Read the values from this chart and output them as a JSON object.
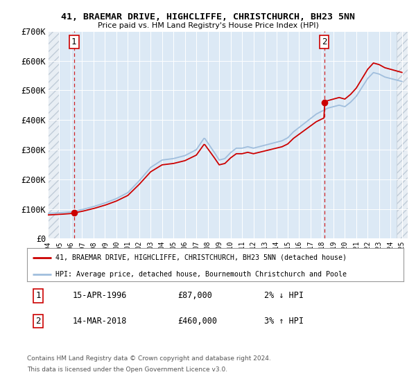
{
  "title": "41, BRAEMAR DRIVE, HIGHCLIFFE, CHRISTCHURCH, BH23 5NN",
  "subtitle": "Price paid vs. HM Land Registry's House Price Index (HPI)",
  "sale1_date": 1996.29,
  "sale1_price": 87000,
  "sale1_label": "1",
  "sale1_hpi_diff": "2% ↓ HPI",
  "sale1_date_str": "15-APR-1996",
  "sale2_date": 2018.19,
  "sale2_price": 460000,
  "sale2_label": "2",
  "sale2_hpi_diff": "3% ↑ HPI",
  "sale2_date_str": "14-MAR-2018",
  "xmin": 1994.0,
  "xmax": 2025.5,
  "ymin": 0,
  "ymax": 700000,
  "yticks": [
    0,
    100000,
    200000,
    300000,
    400000,
    500000,
    600000,
    700000
  ],
  "ytick_labels": [
    "£0",
    "£100K",
    "£200K",
    "£300K",
    "£400K",
    "£500K",
    "£600K",
    "£700K"
  ],
  "xticks": [
    1994,
    1995,
    1996,
    1997,
    1998,
    1999,
    2000,
    2001,
    2002,
    2003,
    2004,
    2005,
    2006,
    2007,
    2008,
    2009,
    2010,
    2011,
    2012,
    2013,
    2014,
    2015,
    2016,
    2017,
    2018,
    2019,
    2020,
    2021,
    2022,
    2023,
    2024,
    2025
  ],
  "hpi_key_x": [
    1994.0,
    1995.0,
    1996.0,
    1997.0,
    1998.0,
    1999.0,
    2000.0,
    2001.0,
    2002.0,
    2003.0,
    2004.0,
    2005.0,
    2006.0,
    2007.0,
    2007.7,
    2008.5,
    2009.0,
    2009.5,
    2010.0,
    2010.5,
    2011.0,
    2011.5,
    2012.0,
    2012.5,
    2013.0,
    2013.5,
    2014.0,
    2014.5,
    2015.0,
    2015.5,
    2016.0,
    2016.5,
    2017.0,
    2017.5,
    2018.0,
    2018.5,
    2019.0,
    2019.5,
    2020.0,
    2020.5,
    2021.0,
    2021.5,
    2022.0,
    2022.5,
    2023.0,
    2023.5,
    2024.0,
    2024.5,
    2025.0
  ],
  "hpi_key_y": [
    85000,
    87000,
    90000,
    98000,
    108000,
    120000,
    135000,
    155000,
    195000,
    240000,
    265000,
    270000,
    280000,
    300000,
    340000,
    295000,
    265000,
    270000,
    290000,
    305000,
    305000,
    310000,
    305000,
    310000,
    315000,
    320000,
    325000,
    330000,
    340000,
    360000,
    375000,
    390000,
    405000,
    420000,
    430000,
    440000,
    445000,
    450000,
    445000,
    460000,
    480000,
    510000,
    540000,
    560000,
    555000,
    545000,
    540000,
    535000,
    530000
  ],
  "plot_bg_color": "#dce9f5",
  "hatch_color": "#c0ccd8",
  "grid_color": "#ffffff",
  "line_hpi_color": "#a0bedd",
  "line_sale_color": "#cc0000",
  "sale_marker_color": "#cc0000",
  "vline_color": "#cc0000",
  "annotation_box_edgecolor": "#cc0000",
  "fig_bg_color": "#ffffff",
  "legend_line1": "41, BRAEMAR DRIVE, HIGHCLIFFE, CHRISTCHURCH, BH23 5NN (detached house)",
  "legend_line2": "HPI: Average price, detached house, Bournemouth Christchurch and Poole",
  "footnote1": "Contains HM Land Registry data © Crown copyright and database right 2024.",
  "footnote2": "This data is licensed under the Open Government Licence v3.0."
}
